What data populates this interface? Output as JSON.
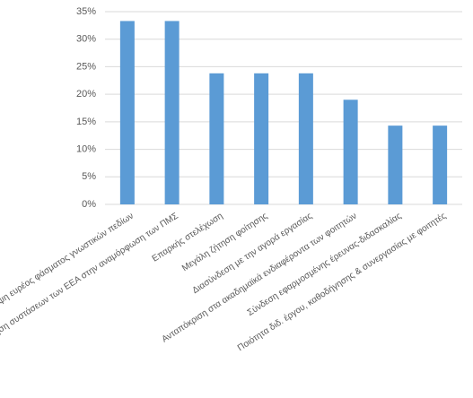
{
  "chart_data": {
    "type": "bar",
    "categories": [
      "Κάλυψη ευρέος φάσματος γνωστικών πεδίων",
      "Αξιοποίηση συστάσεων των ΕΕΑ στην αναμόρφωση των ΠΜΣ",
      "Επαρκής στελέχωση",
      "Μεγάλη ζήτηση φοίτησης",
      "Διασύνδεση με την αγορά εργασίας",
      "Ανταπόκριση στα ακαδημαϊκά ενδιαφέροντα των φοιτητών",
      "Σύνδεση εφαρμοσμένης έρευνας-διδασκαλίας",
      "Ποιότητα διδ. έργου, καθοδήγησης & συνεργασίας με φοιτητές"
    ],
    "values": [
      33.3,
      33.3,
      23.8,
      23.8,
      23.8,
      19.0,
      14.3,
      14.3
    ],
    "color": "#5b9bd5",
    "ylim": [
      0,
      35
    ],
    "yticks": [
      {
        "value": 0,
        "label": "0%"
      },
      {
        "value": 5,
        "label": "5%"
      },
      {
        "value": 10,
        "label": "10%"
      },
      {
        "value": 15,
        "label": "15%"
      },
      {
        "value": 20,
        "label": "20%"
      },
      {
        "value": 25,
        "label": "25%"
      },
      {
        "value": 30,
        "label": "30%"
      },
      {
        "value": 35,
        "label": "35%"
      }
    ],
    "grid": true
  }
}
